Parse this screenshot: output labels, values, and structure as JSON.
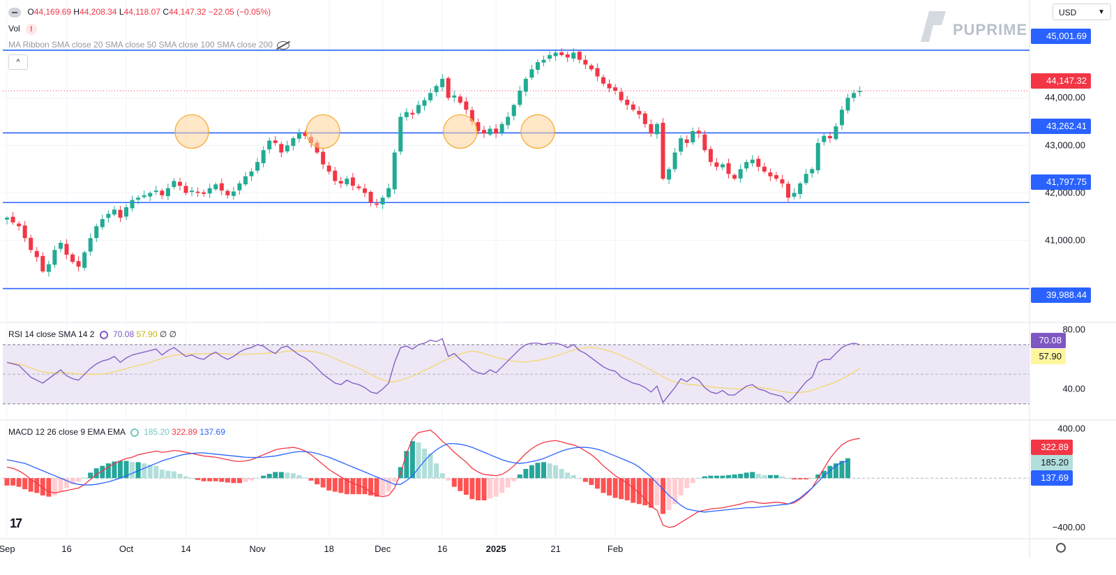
{
  "header": {
    "open_label": "O",
    "open": "44,169.69",
    "high_label": "H",
    "high": "44,208.34",
    "low_label": "L",
    "low": "44,118.07",
    "close_label": "C",
    "close": "44,147.32",
    "change": "−22.05 (−0.05%)",
    "vol_label": "Vol",
    "vol_warning": "!",
    "ma_ribbon": "MA Ribbon SMA close 20 SMA close 50 SMA close 100 SMA close 200",
    "collapse_glyph": "^"
  },
  "currency_selector": {
    "value": "USD"
  },
  "brand": {
    "name": "PUPRIME"
  },
  "price_axis": {
    "ticks": [
      {
        "value": 44000,
        "label": "44,000.00"
      },
      {
        "value": 43000,
        "label": "43,000.00"
      },
      {
        "value": 42000,
        "label": "42,000.00"
      },
      {
        "value": 41000,
        "label": "41,000.00"
      }
    ],
    "levels": [
      {
        "value": 45001.69,
        "label": "45,001.69",
        "color": "#2962ff"
      },
      {
        "value": 43262.41,
        "label": "43,262.41",
        "color": "#2962ff"
      },
      {
        "value": 41797.75,
        "label": "41,797.75",
        "color": "#2962ff"
      },
      {
        "value": 39988.44,
        "label": "39,988.44",
        "color": "#2962ff"
      }
    ],
    "last_price": {
      "value": 44147.32,
      "label": "44,147.32",
      "color": "#f23645"
    }
  },
  "time_axis": {
    "labels": [
      {
        "idx": 0,
        "label": "Sep"
      },
      {
        "idx": 10,
        "label": "16"
      },
      {
        "idx": 20,
        "label": "Oct"
      },
      {
        "idx": 30,
        "label": "14"
      },
      {
        "idx": 42,
        "label": "Nov"
      },
      {
        "idx": 54,
        "label": "18"
      },
      {
        "idx": 63,
        "label": "Dec"
      },
      {
        "idx": 73,
        "label": "16"
      },
      {
        "idx": 82,
        "label": "2025"
      },
      {
        "idx": 92,
        "label": "21"
      },
      {
        "idx": 102,
        "label": "Feb"
      }
    ]
  },
  "rsi": {
    "legend": "RSI 14 close SMA 14 2",
    "rsi_value": "70.08",
    "sma_value": "57.90",
    "extra1": "∅",
    "extra2": "∅",
    "ticks": [
      {
        "value": 80,
        "label": "80.00"
      },
      {
        "value": 40,
        "label": "40.00"
      }
    ],
    "bands": {
      "upper": 70,
      "middle": 50,
      "lower": 30
    },
    "badge_rsi": "70.08",
    "badge_sma": "57.90"
  },
  "macd": {
    "legend": "MACD 12 26 close 9 EMA EMA",
    "hist_value": "185.20",
    "macd_value": "322.89",
    "signal_value": "137.69",
    "ticks": [
      {
        "value": 400,
        "label": "400.00"
      },
      {
        "value": -400,
        "label": "−400.00"
      }
    ]
  },
  "colors": {
    "up": "#22ab94",
    "down": "#f23645",
    "level_line": "#2962ff",
    "circle_fill": "#ffd49a",
    "circle_stroke": "#f5a623",
    "rsi_line": "#7e57c2",
    "rsi_sma": "#f5d76e",
    "rsi_band": "#ede7f6",
    "macd_line": "#f23645",
    "signal_line": "#2962ff"
  },
  "chart_data": {
    "type": "candlestick",
    "price_range": [
      39600,
      45500
    ],
    "grid": true,
    "note_circles_at_idx": [
      31,
      53,
      76,
      89
    ],
    "closes": [
      41480,
      41380,
      41300,
      41050,
      40800,
      40650,
      40350,
      40500,
      40800,
      40950,
      40700,
      40550,
      40450,
      40750,
      41050,
      41300,
      41450,
      41560,
      41650,
      41480,
      41700,
      41850,
      41900,
      41950,
      42000,
      42050,
      41950,
      42100,
      42250,
      42150,
      42000,
      42050,
      42000,
      41980,
      42100,
      42180,
      42050,
      41950,
      42030,
      42200,
      42350,
      42450,
      42650,
      42900,
      43100,
      43050,
      42850,
      43000,
      43150,
      43250,
      43200,
      43050,
      42850,
      42600,
      42450,
      42250,
      42200,
      42300,
      42150,
      42100,
      42000,
      41800,
      41750,
      41900,
      42100,
      42850,
      43600,
      43700,
      43650,
      43850,
      43950,
      44100,
      44250,
      44400,
      44000,
      44050,
      43900,
      43750,
      43500,
      43300,
      43250,
      43350,
      43250,
      43450,
      43600,
      43850,
      44150,
      44400,
      44600,
      44750,
      44800,
      44900,
      44950,
      44900,
      44850,
      44950,
      44800,
      44700,
      44600,
      44450,
      44300,
      44200,
      44150,
      43950,
      43850,
      43750,
      43650,
      43450,
      43250,
      43450,
      42300,
      42500,
      42850,
      43150,
      43050,
      43300,
      43250,
      42900,
      42650,
      42550,
      42600,
      42400,
      42300,
      42500,
      42650,
      42700,
      42550,
      42450,
      42350,
      42300,
      42200,
      41900,
      42000,
      42200,
      42400,
      42500,
      43050,
      43200,
      43150,
      43400,
      43750,
      44000,
      44100,
      44147
    ]
  },
  "rsi_data": {
    "rsi": [
      58,
      57,
      56,
      52,
      48,
      46,
      44,
      47,
      50,
      53,
      49,
      47,
      46,
      50,
      54,
      57,
      59,
      60,
      62,
      58,
      61,
      63,
      64,
      65,
      66,
      67,
      63,
      66,
      68,
      65,
      62,
      63,
      61,
      60,
      63,
      65,
      62,
      60,
      62,
      65,
      67,
      68,
      70,
      69,
      66,
      64,
      68,
      69,
      66,
      63,
      61,
      58,
      54,
      50,
      47,
      44,
      43,
      46,
      44,
      43,
      41,
      38,
      37,
      40,
      44,
      58,
      68,
      69,
      67,
      70,
      71,
      73,
      72,
      74,
      62,
      64,
      60,
      57,
      53,
      51,
      50,
      53,
      51,
      55,
      59,
      63,
      67,
      70,
      71,
      71,
      70,
      71,
      71,
      70,
      68,
      70,
      66,
      64,
      61,
      58,
      55,
      53,
      52,
      48,
      46,
      44,
      43,
      41,
      38,
      42,
      31,
      36,
      41,
      47,
      45,
      48,
      46,
      41,
      38,
      37,
      39,
      36,
      36,
      39,
      42,
      43,
      40,
      39,
      37,
      36,
      35,
      31,
      35,
      40,
      45,
      48,
      58,
      60,
      60,
      64,
      68,
      70,
      71,
      70
    ]
  },
  "macd_data": {
    "macd": [
      90,
      80,
      60,
      30,
      -10,
      -40,
      -80,
      -110,
      -120,
      -110,
      -100,
      -90,
      -80,
      -50,
      -10,
      30,
      60,
      90,
      120,
      140,
      160,
      170,
      190,
      200,
      210,
      220,
      210,
      215,
      225,
      220,
      210,
      200,
      190,
      180,
      175,
      170,
      160,
      150,
      140,
      135,
      140,
      150,
      170,
      190,
      210,
      230,
      240,
      245,
      250,
      240,
      220,
      190,
      150,
      110,
      70,
      40,
      10,
      -20,
      -40,
      -60,
      -80,
      -110,
      -140,
      -150,
      -140,
      -80,
      40,
      200,
      320,
      370,
      380,
      390,
      350,
      300,
      260,
      210,
      170,
      130,
      80,
      50,
      30,
      25,
      20,
      30,
      60,
      100,
      150,
      200,
      240,
      270,
      290,
      300,
      305,
      295,
      280,
      270,
      250,
      220,
      190,
      150,
      100,
      60,
      20,
      -10,
      -40,
      -80,
      -120,
      -170,
      -230,
      -260,
      -380,
      -400,
      -390,
      -360,
      -330,
      -300,
      -270,
      -260,
      -250,
      -245,
      -240,
      -230,
      -220,
      -210,
      -195,
      -190,
      -200,
      -205,
      -200,
      -195,
      -200,
      -210,
      -200,
      -170,
      -130,
      -80,
      0,
      80,
      160,
      220,
      270,
      300,
      315,
      323
    ],
    "signal": [
      150,
      140,
      130,
      120,
      100,
      80,
      60,
      40,
      20,
      0,
      -20,
      -40,
      -50,
      -55,
      -55,
      -50,
      -40,
      -30,
      -15,
      0,
      20,
      40,
      60,
      80,
      100,
      120,
      140,
      155,
      170,
      185,
      195,
      200,
      205,
      205,
      200,
      195,
      190,
      185,
      180,
      175,
      170,
      168,
      168,
      170,
      175,
      180,
      190,
      200,
      210,
      215,
      215,
      210,
      200,
      185,
      170,
      150,
      130,
      110,
      90,
      70,
      50,
      30,
      10,
      -10,
      -30,
      -50,
      -50,
      -20,
      20,
      80,
      140,
      190,
      230,
      260,
      280,
      280,
      275,
      265,
      250,
      230,
      210,
      190,
      170,
      150,
      135,
      125,
      120,
      125,
      135,
      145,
      160,
      180,
      200,
      220,
      235,
      245,
      250,
      250,
      245,
      235,
      220,
      200,
      180,
      160,
      140,
      120,
      90,
      50,
      10,
      -40,
      -90,
      -140,
      -180,
      -220,
      -250,
      -260,
      -270,
      -275,
      -270,
      -265,
      -260,
      -255,
      -250,
      -245,
      -240,
      -240,
      -235,
      -230,
      -225,
      -220,
      -215,
      -210,
      -190,
      -160,
      -120,
      -80,
      -30,
      20,
      60,
      100,
      130,
      138
    ]
  }
}
